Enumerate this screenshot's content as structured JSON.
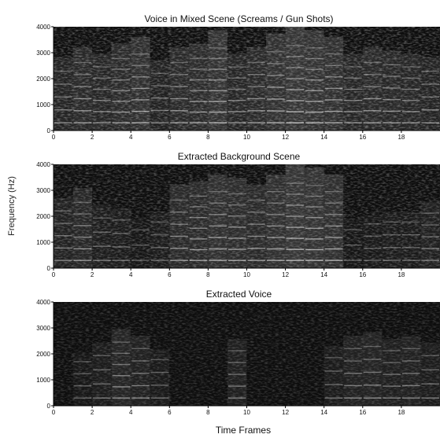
{
  "figure": {
    "ylabel": "Frequency (Hz)",
    "xlabel": "Time Frames"
  },
  "chart_data": [
    {
      "type": "heatmap",
      "title": "Voice in Mixed Scene (Screams / Gun Shots)",
      "xlim": [
        0,
        20
      ],
      "ylim": [
        0,
        4000
      ],
      "xticks": [
        0,
        2,
        4,
        6,
        8,
        10,
        12,
        14,
        16,
        18
      ],
      "yticks": [
        0,
        1000,
        2000,
        3000,
        4000
      ],
      "colormap": "grayscale (dark = low energy)",
      "energy_profile": [
        0.55,
        0.7,
        0.6,
        0.75,
        0.85,
        0.5,
        0.7,
        0.75,
        0.95,
        0.6,
        0.7,
        0.9,
        1.0,
        0.95,
        0.85,
        0.6,
        0.7,
        0.65,
        0.6,
        0.55
      ]
    },
    {
      "type": "heatmap",
      "title": "Extracted Background Scene",
      "xlim": [
        0,
        20
      ],
      "ylim": [
        0,
        4000
      ],
      "xticks": [
        0,
        2,
        4,
        6,
        8,
        10,
        12,
        14,
        16,
        18
      ],
      "yticks": [
        0,
        1000,
        2000,
        3000,
        4000
      ],
      "colormap": "grayscale (dark = low energy)",
      "energy_profile": [
        0.5,
        0.65,
        0.4,
        0.35,
        0.2,
        0.3,
        0.7,
        0.75,
        0.85,
        0.8,
        0.7,
        0.85,
        1.0,
        0.95,
        0.85,
        0.2,
        0.25,
        0.3,
        0.3,
        0.45
      ]
    },
    {
      "type": "heatmap",
      "title": "Extracted Voice",
      "xlim": [
        0,
        20
      ],
      "ylim": [
        0,
        4000
      ],
      "xticks": [
        0,
        2,
        4,
        6,
        8,
        10,
        12,
        14,
        16,
        18
      ],
      "yticks": [
        0,
        1000,
        2000,
        3000,
        4000
      ],
      "colormap": "grayscale (dark = low energy)",
      "energy_profile": [
        0.0,
        0.25,
        0.4,
        0.6,
        0.5,
        0.3,
        0.0,
        0.0,
        0.0,
        0.45,
        0.0,
        0.0,
        0.0,
        0.0,
        0.35,
        0.5,
        0.55,
        0.45,
        0.5,
        0.4
      ]
    }
  ]
}
